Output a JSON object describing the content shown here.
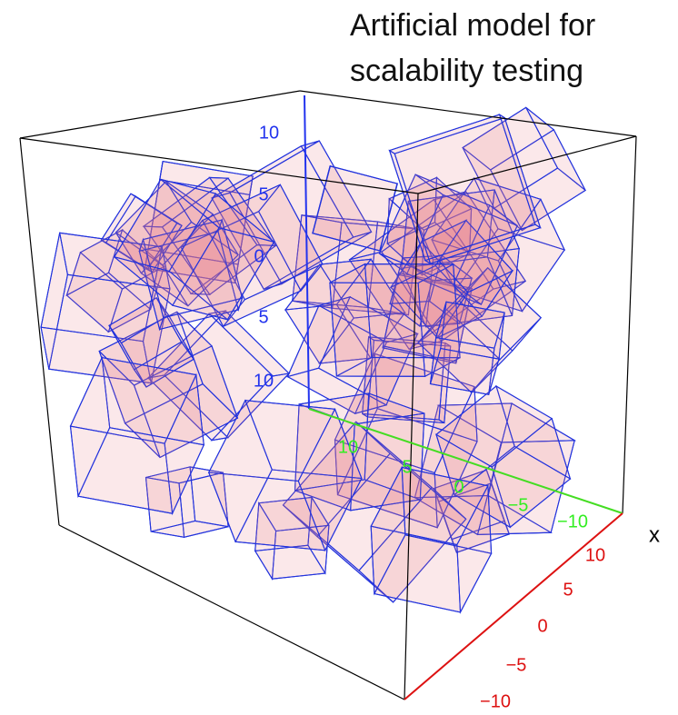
{
  "title": [
    "Artificial model for",
    "scalability testing"
  ],
  "axes": {
    "x": {
      "label": "x",
      "ticks": [
        "10",
        "5",
        "0",
        "−5",
        "−10"
      ]
    },
    "y": {
      "ticks": [
        "10",
        "5",
        "0",
        "−5",
        "−10"
      ]
    },
    "z": {
      "ticks": [
        "10",
        "5",
        "0",
        "5",
        "10"
      ]
    }
  }
}
